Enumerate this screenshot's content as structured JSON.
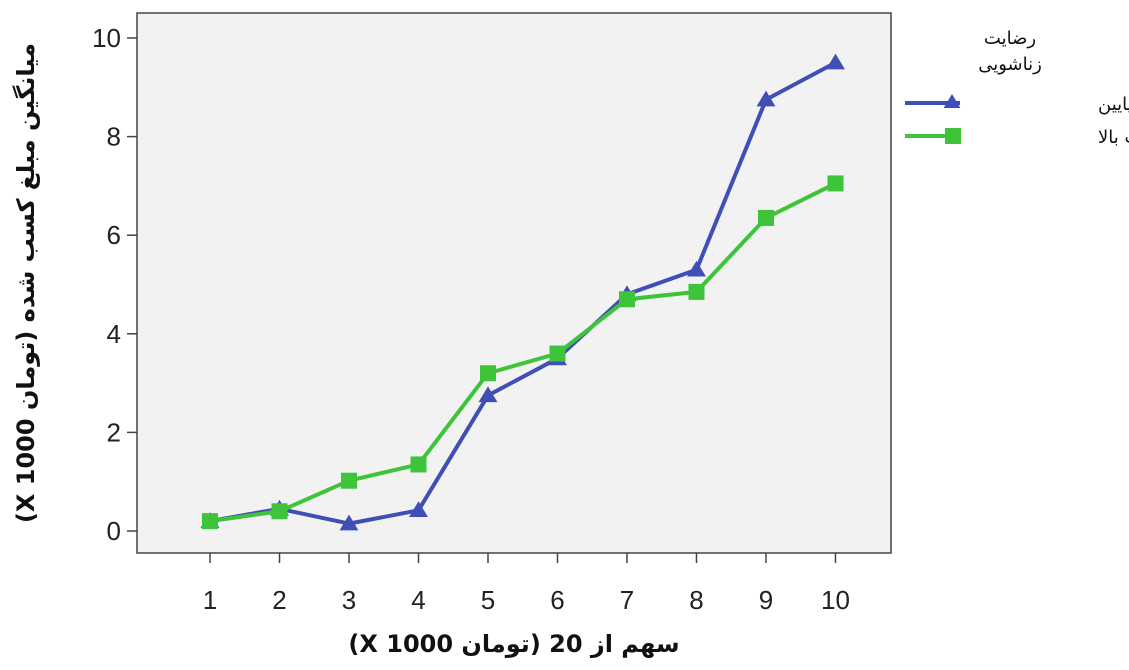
{
  "chart_data": {
    "type": "line",
    "x": [
      1,
      2,
      3,
      4,
      5,
      6,
      7,
      8,
      9,
      10
    ],
    "series": [
      {
        "name": "رضایت پایین",
        "color": "#3f4fb5",
        "marker": "triangle",
        "values": [
          0.2,
          0.45,
          0.15,
          0.42,
          2.75,
          3.5,
          4.8,
          5.3,
          8.75,
          9.5
        ]
      },
      {
        "name": "رضایت بالا",
        "color": "#3ec43a",
        "marker": "square",
        "values": [
          0.2,
          0.4,
          1.02,
          1.35,
          3.2,
          3.6,
          4.7,
          4.85,
          6.35,
          7.05
        ]
      }
    ],
    "xlabel": "سهم از 20 (تومان X 1000)",
    "ylabel": "میانگین مبلغ کسب شده (تومان X 1000)",
    "ylim": [
      -0.5,
      10.4
    ],
    "yticks": [
      0,
      2,
      4,
      6,
      8,
      10
    ],
    "xticks": [
      1,
      2,
      3,
      4,
      5,
      6,
      7,
      8,
      9,
      10
    ],
    "legend": {
      "title_line1": "رضایت",
      "title_line2": "زناشویی",
      "placement": "right"
    },
    "grid": false,
    "plot_background": "#f2f2f2"
  }
}
